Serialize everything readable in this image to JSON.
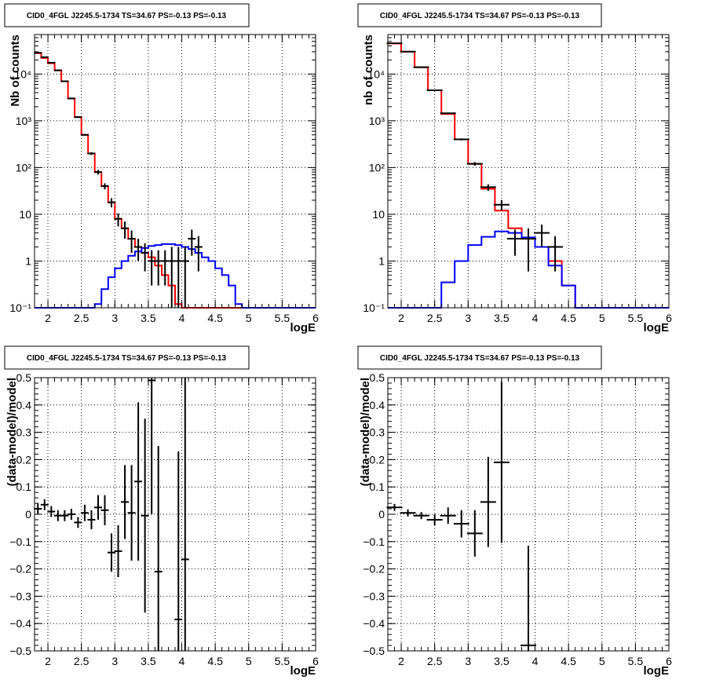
{
  "chart_data": [
    {
      "type": "line",
      "title": "CID0_4FGL J2245.5-1734 TS=34.67 PS=-0.13 PS=-0.13",
      "xlabel": "logE",
      "ylabel": "Nb of counts",
      "xlim": [
        1.8,
        6.0
      ],
      "ylim": [
        0.1,
        70000
      ],
      "yscale": "log",
      "grid": true,
      "x_ticks": [
        "2",
        "2.5",
        "3",
        "3.5",
        "4",
        "4.5",
        "5",
        "5.5",
        "6"
      ],
      "y_ticks": [
        "10⁻¹",
        "1",
        "10",
        "10²",
        "10³",
        "10⁴"
      ],
      "bin_edges": [
        1.8,
        1.9,
        2.0,
        2.1,
        2.2,
        2.3,
        2.4,
        2.5,
        2.6,
        2.7,
        2.8,
        2.9,
        3.0,
        3.1,
        3.2,
        3.3,
        3.4,
        3.5,
        3.6,
        3.7,
        3.8,
        3.9,
        4.0,
        4.1,
        4.2,
        4.3,
        4.4,
        4.5,
        4.6,
        4.7,
        4.8,
        4.9,
        5.0,
        5.1,
        5.2,
        5.3,
        5.4,
        5.5,
        5.6,
        5.7,
        5.8,
        5.9,
        6.0
      ],
      "series": [
        {
          "color": "#ff0000",
          "style": "step",
          "values": [
            28000,
            22000,
            17000,
            12000,
            7000,
            3000,
            1200,
            500,
            200,
            80,
            40,
            18,
            8,
            5,
            3,
            2,
            1.5,
            1.2,
            0.8,
            0.5,
            0.3,
            0.12,
            0.1,
            0.1,
            0.1,
            0.1,
            0.1,
            0.1,
            0.1,
            0.1,
            0.1,
            0.1,
            0.1,
            0.1,
            0.1,
            0.1,
            0.1,
            0.1,
            0.1,
            0.1,
            0.1,
            0.1
          ]
        },
        {
          "color": "#0000ff",
          "style": "step",
          "values": [
            0.1,
            0.1,
            0.1,
            0.1,
            0.1,
            0.1,
            0.1,
            0.1,
            0.1,
            0.12,
            0.25,
            0.45,
            0.7,
            1.0,
            1.3,
            1.6,
            1.9,
            2.1,
            2.2,
            2.3,
            2.3,
            2.2,
            2.0,
            1.8,
            1.5,
            1.2,
            1.0,
            0.7,
            0.5,
            0.3,
            0.12,
            0.1,
            0.1,
            0.1,
            0.1,
            0.1,
            0.1,
            0.1,
            0.1,
            0.1,
            0.1,
            0.1
          ]
        },
        {
          "color": "#000000",
          "style": "errorbars",
          "points": [
            {
              "x": 1.85,
              "y": 28500,
              "lo": 28300,
              "hi": 28700
            },
            {
              "x": 1.95,
              "y": 23000,
              "lo": 22800,
              "hi": 23200
            },
            {
              "x": 2.05,
              "y": 17500,
              "lo": 17300,
              "hi": 17700
            },
            {
              "x": 2.15,
              "y": 12000,
              "lo": 11900,
              "hi": 12100
            },
            {
              "x": 2.25,
              "y": 7000,
              "lo": 6900,
              "hi": 7100
            },
            {
              "x": 2.35,
              "y": 3000,
              "lo": 2950,
              "hi": 3050
            },
            {
              "x": 2.45,
              "y": 1200,
              "lo": 1170,
              "hi": 1230
            },
            {
              "x": 2.55,
              "y": 500,
              "lo": 480,
              "hi": 520
            },
            {
              "x": 2.65,
              "y": 200,
              "lo": 186,
              "hi": 214
            },
            {
              "x": 2.75,
              "y": 80,
              "lo": 71,
              "hi": 89
            },
            {
              "x": 2.85,
              "y": 40,
              "lo": 34,
              "hi": 46
            },
            {
              "x": 2.95,
              "y": 18,
              "lo": 14,
              "hi": 22
            },
            {
              "x": 3.05,
              "y": 8,
              "lo": 5.5,
              "hi": 10.5
            },
            {
              "x": 3.15,
              "y": 5,
              "lo": 3,
              "hi": 7
            },
            {
              "x": 3.25,
              "y": 3,
              "lo": 1.5,
              "hi": 4.5
            },
            {
              "x": 3.35,
              "y": 2,
              "lo": 1,
              "hi": 3
            },
            {
              "x": 3.45,
              "y": 1.5,
              "lo": 0.6,
              "hi": 2.4
            },
            {
              "x": 3.55,
              "y": 1.0,
              "lo": 0.3,
              "hi": 1.7
            },
            {
              "x": 3.65,
              "y": 1.0,
              "lo": 0.3,
              "hi": 1.7
            },
            {
              "x": 3.75,
              "y": 1.0,
              "lo": 0.3,
              "hi": 1.7
            },
            {
              "x": 3.85,
              "y": 1.0,
              "lo": 0.1,
              "hi": 2.0
            },
            {
              "x": 3.95,
              "y": 1.0,
              "lo": 0.1,
              "hi": 2.0
            },
            {
              "x": 4.05,
              "y": 1.0,
              "lo": 0.1,
              "hi": 2.0
            },
            {
              "x": 4.15,
              "y": 3.0,
              "lo": 1.3,
              "hi": 4.7
            },
            {
              "x": 4.25,
              "y": 2.0,
              "lo": 0.6,
              "hi": 3.4
            }
          ]
        }
      ]
    },
    {
      "type": "line",
      "title": "CID0_4FGL J2245.5-1734 TS=34.67 PS=-0.13 PS=-0.13",
      "xlabel": "logE",
      "ylabel": "nb of counts",
      "xlim": [
        1.8,
        6.0
      ],
      "ylim": [
        0.1,
        70000
      ],
      "yscale": "log",
      "grid": true,
      "x_ticks": [
        "2",
        "2.5",
        "3",
        "3.5",
        "4",
        "4.5",
        "5",
        "5.5",
        "6"
      ],
      "y_ticks": [
        "10⁻¹",
        "1",
        "10",
        "10²",
        "10³",
        "10⁴"
      ],
      "bin_edges": [
        1.8,
        2.0,
        2.2,
        2.4,
        2.6,
        2.8,
        3.0,
        3.2,
        3.4,
        3.6,
        3.8,
        4.0,
        4.2,
        4.4,
        4.6,
        4.8,
        5.0,
        5.2,
        5.4,
        5.6,
        5.8,
        6.0
      ],
      "series": [
        {
          "color": "#ff0000",
          "style": "step",
          "values": [
            45000,
            30000,
            14000,
            4500,
            1400,
            400,
            120,
            35,
            12,
            5,
            3,
            2,
            1.0,
            0.3,
            0.1,
            0.1,
            0.1,
            0.1,
            0.1,
            0.1,
            0.1
          ]
        },
        {
          "color": "#0000ff",
          "style": "step",
          "values": [
            0.1,
            0.1,
            0.1,
            0.1,
            0.35,
            1.0,
            2.2,
            3.3,
            4.3,
            4.0,
            3.2,
            2.0,
            0.8,
            0.3,
            0.1,
            0.1,
            0.1,
            0.1,
            0.1,
            0.1,
            0.1
          ]
        },
        {
          "color": "#000000",
          "style": "errorbars",
          "points": [
            {
              "x": 1.9,
              "y": 45500,
              "lo": 45300,
              "hi": 45700
            },
            {
              "x": 2.1,
              "y": 30200,
              "lo": 30000,
              "hi": 30400
            },
            {
              "x": 2.3,
              "y": 14000,
              "lo": 13900,
              "hi": 14100
            },
            {
              "x": 2.5,
              "y": 4500,
              "lo": 4430,
              "hi": 4570
            },
            {
              "x": 2.7,
              "y": 1450,
              "lo": 1410,
              "hi": 1490
            },
            {
              "x": 2.9,
              "y": 400,
              "lo": 380,
              "hi": 420
            },
            {
              "x": 3.1,
              "y": 120,
              "lo": 109,
              "hi": 131
            },
            {
              "x": 3.3,
              "y": 38,
              "lo": 32,
              "hi": 44
            },
            {
              "x": 3.5,
              "y": 16,
              "lo": 12,
              "hi": 20
            },
            {
              "x": 3.7,
              "y": 3.0,
              "lo": 1.3,
              "hi": 4.7
            },
            {
              "x": 3.9,
              "y": 3.0,
              "lo": 0.6,
              "hi": 5.0
            },
            {
              "x": 4.1,
              "y": 4.0,
              "lo": 2.0,
              "hi": 6.0
            },
            {
              "x": 4.3,
              "y": 2.0,
              "lo": 0.6,
              "hi": 3.4
            }
          ]
        }
      ]
    },
    {
      "type": "scatter",
      "title": "CID0_4FGL J2245.5-1734 TS=34.67 PS=-0.13 PS=-0.13",
      "xlabel": "logE",
      "ylabel": "(data-model)/model",
      "xlim": [
        1.8,
        6.0
      ],
      "ylim": [
        -0.5,
        0.5
      ],
      "yscale": "linear",
      "grid": true,
      "x_ticks": [
        "2",
        "2.5",
        "3",
        "3.5",
        "4",
        "4.5",
        "5",
        "5.5",
        "6"
      ],
      "y_ticks": [
        "−0.5",
        "−0.4",
        "−0.3",
        "−0.2",
        "−0.1",
        "0",
        "0.1",
        "0.2",
        "0.3",
        "0.4",
        "0.5"
      ],
      "series": [
        {
          "color": "#000000",
          "style": "errorbars",
          "points": [
            {
              "x": 1.85,
              "y": 0.02,
              "lo": 0.0,
              "hi": 0.04
            },
            {
              "x": 1.95,
              "y": 0.035,
              "lo": 0.015,
              "hi": 0.055
            },
            {
              "x": 2.05,
              "y": 0.01,
              "lo": -0.01,
              "hi": 0.03
            },
            {
              "x": 2.15,
              "y": -0.005,
              "lo": -0.025,
              "hi": 0.015
            },
            {
              "x": 2.25,
              "y": -0.005,
              "lo": -0.025,
              "hi": 0.015
            },
            {
              "x": 2.35,
              "y": 0.0,
              "lo": -0.02,
              "hi": 0.02
            },
            {
              "x": 2.45,
              "y": -0.03,
              "lo": -0.05,
              "hi": -0.01
            },
            {
              "x": 2.55,
              "y": 0.005,
              "lo": -0.025,
              "hi": 0.035
            },
            {
              "x": 2.65,
              "y": -0.02,
              "lo": -0.055,
              "hi": 0.015
            },
            {
              "x": 2.75,
              "y": 0.025,
              "lo": -0.02,
              "hi": 0.07
            },
            {
              "x": 2.85,
              "y": 0.015,
              "lo": -0.04,
              "hi": 0.07
            },
            {
              "x": 2.95,
              "y": -0.14,
              "lo": -0.21,
              "hi": -0.07
            },
            {
              "x": 3.05,
              "y": -0.135,
              "lo": -0.23,
              "hi": -0.04
            },
            {
              "x": 3.15,
              "y": 0.045,
              "lo": -0.09,
              "hi": 0.18
            },
            {
              "x": 3.25,
              "y": 0.005,
              "lo": -0.17,
              "hi": 0.18
            },
            {
              "x": 3.35,
              "y": 0.12,
              "lo": -0.17,
              "hi": 0.41
            },
            {
              "x": 3.45,
              "y": -0.005,
              "lo": -0.36,
              "hi": 0.35
            },
            {
              "x": 3.55,
              "y": 0.49,
              "lo": 0.0,
              "hi": 0.5
            },
            {
              "x": 3.65,
              "y": -0.21,
              "lo": -0.5,
              "hi": 0.25
            },
            {
              "x": 3.95,
              "y": -0.385,
              "lo": -0.5,
              "hi": 0.23
            },
            {
              "x": 4.05,
              "y": -0.165,
              "lo": -0.5,
              "hi": 0.5
            }
          ]
        }
      ]
    },
    {
      "type": "scatter",
      "title": "CID0_4FGL J2245.5-1734 TS=34.67 PS=-0.13 PS=-0.13",
      "xlabel": "logE",
      "ylabel": "(data-model)/model",
      "xlim": [
        1.8,
        6.0
      ],
      "ylim": [
        -0.5,
        0.5
      ],
      "yscale": "linear",
      "grid": true,
      "x_ticks": [
        "2",
        "2.5",
        "3",
        "3.5",
        "4",
        "4.5",
        "5",
        "5.5",
        "6"
      ],
      "y_ticks": [
        "−0.5",
        "−0.4",
        "−0.3",
        "−0.2",
        "−0.1",
        "0",
        "0.1",
        "0.2",
        "0.3",
        "0.4",
        "0.5"
      ],
      "series": [
        {
          "color": "#000000",
          "style": "errorbars",
          "points": [
            {
              "x": 1.9,
              "y": 0.025,
              "lo": 0.012,
              "hi": 0.038
            },
            {
              "x": 2.1,
              "y": 0.005,
              "lo": -0.008,
              "hi": 0.018
            },
            {
              "x": 2.3,
              "y": -0.005,
              "lo": -0.018,
              "hi": 0.008
            },
            {
              "x": 2.5,
              "y": -0.02,
              "lo": -0.04,
              "hi": 0.0
            },
            {
              "x": 2.7,
              "y": -0.005,
              "lo": -0.035,
              "hi": 0.025
            },
            {
              "x": 2.9,
              "y": -0.035,
              "lo": -0.085,
              "hi": 0.015
            },
            {
              "x": 3.1,
              "y": -0.07,
              "lo": -0.155,
              "hi": 0.015
            },
            {
              "x": 3.3,
              "y": 0.045,
              "lo": -0.12,
              "hi": 0.21
            },
            {
              "x": 3.5,
              "y": 0.19,
              "lo": -0.105,
              "hi": 0.485
            },
            {
              "x": 3.9,
              "y": -0.48,
              "lo": -0.5,
              "hi": -0.115
            }
          ]
        }
      ]
    }
  ]
}
